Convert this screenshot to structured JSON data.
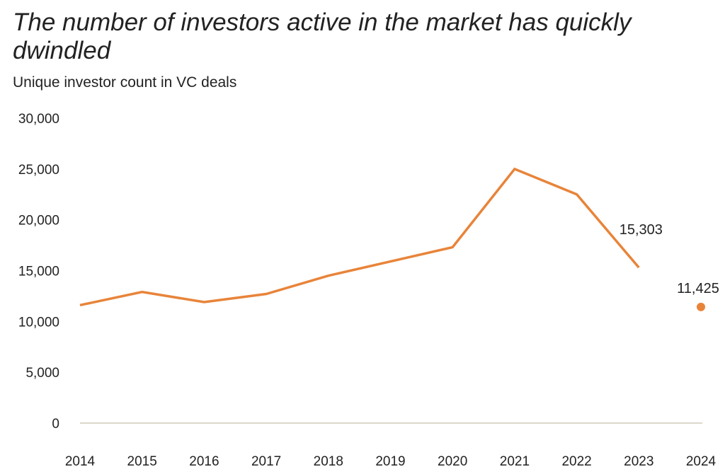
{
  "chart_data": {
    "type": "line",
    "title": "The number of investors active in the market has quickly dwindled",
    "subtitle": "Unique investor count in VC deals",
    "xlabel": "",
    "ylabel": "",
    "ylim": [
      0,
      30000
    ],
    "yticks": [
      0,
      5000,
      10000,
      15000,
      20000,
      25000,
      30000
    ],
    "ytick_labels": [
      "0",
      "5,000",
      "10,000",
      "15,000",
      "20,000",
      "25,000",
      "30,000"
    ],
    "categories": [
      "2014",
      "2015",
      "2016",
      "2017",
      "2018",
      "2019",
      "2020",
      "2021",
      "2022",
      "2023",
      "2024"
    ],
    "series": [
      {
        "name": "Unique investor count",
        "values": [
          11600,
          12900,
          11900,
          12700,
          14500,
          15900,
          17300,
          25000,
          22500,
          15303,
          null
        ],
        "color": "#E8843A"
      },
      {
        "name": "2024 (point)",
        "values": [
          null,
          null,
          null,
          null,
          null,
          null,
          null,
          null,
          null,
          null,
          11425
        ],
        "color": "#E8843A"
      }
    ],
    "annotations": [
      {
        "category": "2023",
        "text": "15,303"
      },
      {
        "category": "2024",
        "text": "11,425"
      }
    ],
    "grid": false
  }
}
